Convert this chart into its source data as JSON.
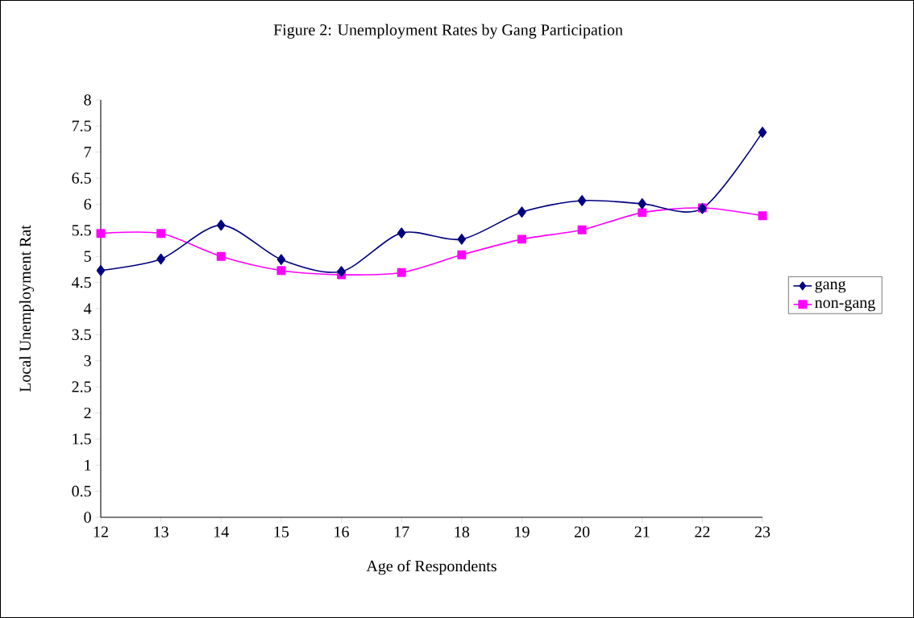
{
  "chart_data": {
    "type": "line",
    "title": "Figure 2: Unemployment Rates by Gang Participation",
    "xlabel": "Age of Respondents",
    "ylabel": "Local Unemployment Rat",
    "x": [
      12,
      13,
      14,
      15,
      16,
      17,
      18,
      19,
      20,
      21,
      22,
      23
    ],
    "series": [
      {
        "name": "gang",
        "color": "#000080",
        "marker": "diamond",
        "values": [
          4.73,
          4.95,
          5.6,
          4.94,
          4.71,
          5.45,
          5.33,
          5.85,
          6.07,
          6.01,
          5.92,
          7.38
        ]
      },
      {
        "name": "non-gang",
        "color": "#ff00ff",
        "marker": "square",
        "values": [
          5.44,
          5.44,
          5.0,
          4.73,
          4.65,
          4.69,
          5.03,
          5.33,
          5.51,
          5.84,
          5.93,
          5.78
        ]
      }
    ],
    "xlim": [
      12,
      23
    ],
    "xticks": [
      12,
      13,
      14,
      15,
      16,
      17,
      18,
      19,
      20,
      21,
      22,
      23
    ],
    "ylim": [
      0,
      8
    ],
    "yticks": [
      0,
      0.5,
      1,
      1.5,
      2,
      2.5,
      3,
      3.5,
      4,
      4.5,
      5,
      5.5,
      6,
      6.5,
      7,
      7.5,
      8
    ],
    "legend": "right"
  }
}
